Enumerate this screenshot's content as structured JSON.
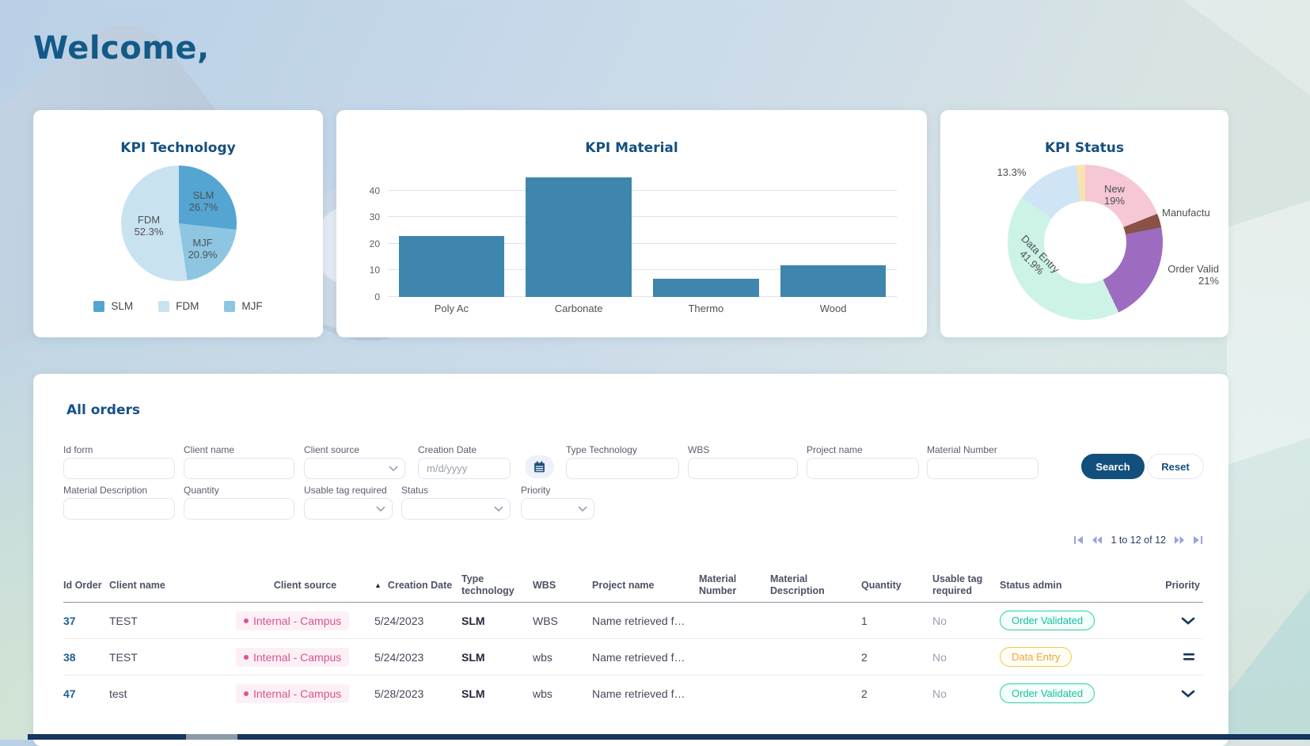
{
  "page": {
    "welcome": "Welcome,"
  },
  "chart_data": [
    {
      "type": "pie",
      "title": "KPI Technology",
      "slices": [
        {
          "label": "SLM",
          "value": 26.7,
          "pct_text": "26.7%",
          "color": "#55a5d2"
        },
        {
          "label": "MJF",
          "value": 20.9,
          "pct_text": "20.9%",
          "color": "#8ec6e2"
        },
        {
          "label": "FDM",
          "value": 52.3,
          "pct_text": "52.3%",
          "color": "#c9e2f0"
        }
      ],
      "legend": [
        {
          "label": "SLM",
          "color": "#55a5d2"
        },
        {
          "label": "FDM",
          "color": "#c9e2f0"
        },
        {
          "label": "MJF",
          "color": "#8ec6e2"
        }
      ]
    },
    {
      "type": "bar",
      "title": "KPI Material",
      "categories": [
        "Poly Ac",
        "Carbonate",
        "Thermo",
        "Wood"
      ],
      "values": [
        23,
        45,
        7,
        12
      ],
      "yticks": [
        0,
        10,
        20,
        30,
        40
      ],
      "ymax": 45,
      "bar_color": "#3e86ad",
      "grid": true
    },
    {
      "type": "donut",
      "title": "KPI Status",
      "slices": [
        {
          "label": "New",
          "value": 19,
          "color": "#f6c7d4"
        },
        {
          "label": "Manufacturing",
          "value": 2.9,
          "color": "#8a5147"
        },
        {
          "label": "Order Validated",
          "value": 21,
          "color": "#9d6cc0"
        },
        {
          "label": "Data Entry",
          "value": 41.9,
          "color": "#ccf3e6"
        },
        {
          "label": "",
          "value": 13.3,
          "color": "#cfe4f4"
        },
        {
          "label": "",
          "value": 1.9,
          "color": "#fae3b2"
        }
      ],
      "annotations": {
        "outside_left_pct": "13.3%",
        "new_label": "New",
        "new_pct": "19%",
        "manufacturing_label": "Manufactu",
        "order_valid_label": "Order Valid",
        "order_valid_pct": "21%",
        "data_entry_label": "Data Entry",
        "data_entry_pct": "41.9%"
      }
    }
  ],
  "orders": {
    "title": "All orders",
    "filters": {
      "id_form": {
        "label": "Id form"
      },
      "client_name": {
        "label": "Client name"
      },
      "client_source": {
        "label": "Client source"
      },
      "creation_date": {
        "label": "Creation Date",
        "placeholder": "m/d/yyyy"
      },
      "type_technology": {
        "label": "Type Technology"
      },
      "wbs": {
        "label": "WBS"
      },
      "project_name": {
        "label": "Project name"
      },
      "material_number": {
        "label": "Material Number"
      },
      "material_description": {
        "label": "Material Description"
      },
      "quantity": {
        "label": "Quantity"
      },
      "usable_tag_required": {
        "label": "Usable tag required"
      },
      "status": {
        "label": "Status"
      },
      "priority": {
        "label": "Priority"
      }
    },
    "buttons": {
      "search": "Search",
      "reset": "Reset"
    },
    "pagination": {
      "label": "1 to 12 of 12"
    },
    "table": {
      "headers": [
        "Id Order",
        "Client name",
        "Client source",
        "Creation Date",
        "Type technology",
        "WBS",
        "Project name",
        "Material Number",
        "Material Description",
        "Quantity",
        "Usable tag required",
        "Status admin",
        "Priority"
      ],
      "rows": [
        {
          "id_order": "37",
          "client_name": "TEST",
          "client_source": "Internal - Campus",
          "creation_date": "5/24/2023",
          "type_technology": "SLM",
          "wbs": "WBS",
          "project_name": "Name retrieved f…",
          "material_number": "",
          "material_description": "",
          "quantity": "1",
          "usable_tag_required": "No",
          "status_admin": "Order Validated",
          "status_variant": "green",
          "priority": "low"
        },
        {
          "id_order": "38",
          "client_name": "TEST",
          "client_source": "Internal - Campus",
          "creation_date": "5/24/2023",
          "type_technology": "SLM",
          "wbs": "wbs",
          "project_name": "Name retrieved f…",
          "material_number": "",
          "material_description": "",
          "quantity": "2",
          "usable_tag_required": "No",
          "status_admin": "Data Entry",
          "status_variant": "yellow",
          "priority": "medium"
        },
        {
          "id_order": "47",
          "client_name": "test",
          "client_source": "Internal - Campus",
          "creation_date": "5/28/2023",
          "type_technology": "SLM",
          "wbs": "wbs",
          "project_name": "Name retrieved f…",
          "material_number": "",
          "material_description": "",
          "quantity": "2",
          "usable_tag_required": "No",
          "status_admin": "Order Validated",
          "status_variant": "green",
          "priority": "low"
        }
      ]
    }
  }
}
